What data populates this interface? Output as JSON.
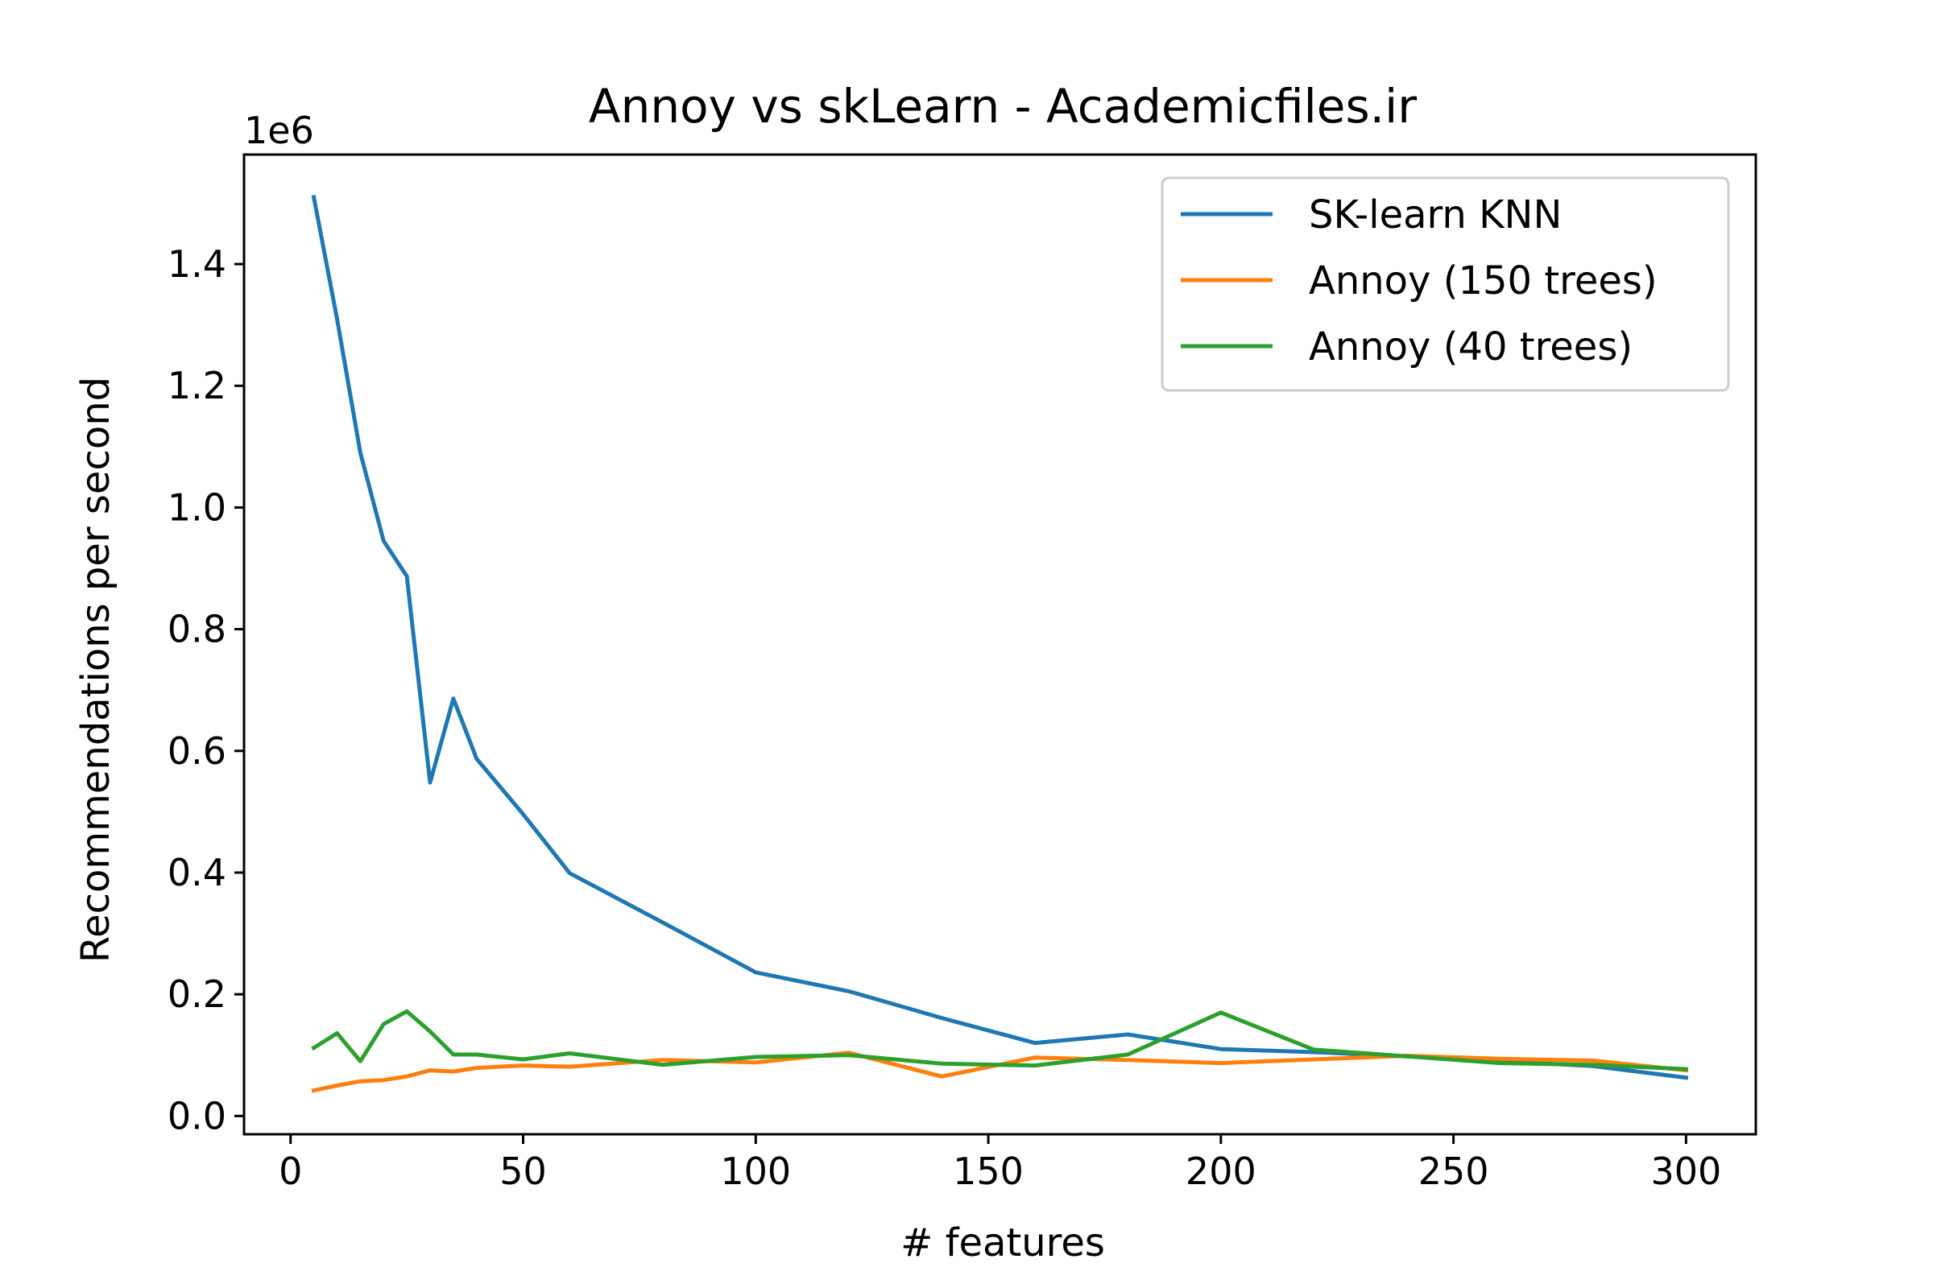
{
  "chart_data": {
    "type": "line",
    "title": "Annoy vs skLearn - Academicfiles.ir",
    "xlabel": "# features",
    "ylabel": "Recommendations per second",
    "y_offset_label": "1e6",
    "xlim": [
      -10,
      315
    ],
    "ylim": [
      -0.03,
      1.58
    ],
    "xticks": [
      0,
      50,
      100,
      150,
      200,
      250,
      300
    ],
    "yticks": [
      0.0,
      0.2,
      0.4,
      0.6,
      0.8,
      1.0,
      1.2,
      1.4
    ],
    "xtick_labels": [
      "0",
      "50",
      "100",
      "150",
      "200",
      "250",
      "300"
    ],
    "ytick_labels": [
      "0.0",
      "0.2",
      "0.4",
      "0.6",
      "0.8",
      "1.0",
      "1.2",
      "1.4"
    ],
    "grid": false,
    "legend_position": "top-right",
    "x": [
      5,
      10,
      15,
      20,
      25,
      30,
      35,
      40,
      50,
      60,
      80,
      100,
      120,
      140,
      160,
      180,
      200,
      220,
      240,
      260,
      280,
      300
    ],
    "series": [
      {
        "name": "SK-learn KNN",
        "color": "#1f77b4",
        "values": [
          1.51,
          1.31,
          1.09,
          0.945,
          0.887,
          0.548,
          0.686,
          0.587,
          0.496,
          0.399,
          0.318,
          0.236,
          0.205,
          0.161,
          0.12,
          0.134,
          0.11,
          0.105,
          0.098,
          0.09,
          0.082,
          0.063
        ]
      },
      {
        "name": "Annoy (150 trees)",
        "color": "#ff7f0e",
        "values": [
          0.042,
          0.05,
          0.057,
          0.059,
          0.065,
          0.075,
          0.073,
          0.079,
          0.083,
          0.081,
          0.092,
          0.088,
          0.104,
          0.065,
          0.096,
          0.092,
          0.087,
          0.093,
          0.099,
          0.094,
          0.091,
          0.075
        ]
      },
      {
        "name": "Annoy (40 trees)",
        "color": "#2ca02c",
        "values": [
          0.112,
          0.136,
          0.09,
          0.151,
          0.172,
          0.139,
          0.101,
          0.101,
          0.093,
          0.103,
          0.084,
          0.097,
          0.1,
          0.086,
          0.083,
          0.101,
          0.17,
          0.109,
          0.098,
          0.087,
          0.084,
          0.077
        ]
      }
    ]
  }
}
